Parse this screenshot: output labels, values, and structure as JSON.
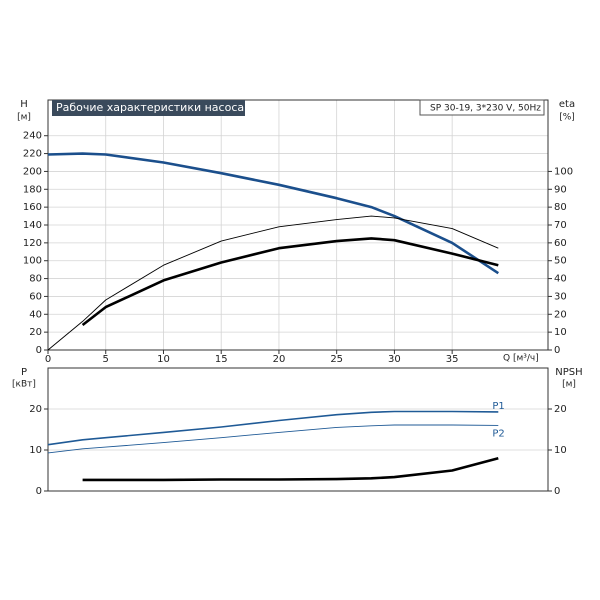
{
  "chart_data": [
    {
      "type": "line",
      "title": "Рабочие характеристики насоса",
      "subtitle": "SP 30-19, 3*230 V, 50Hz",
      "y_label": "H",
      "y_unit": "[м]",
      "y2_label": "eta",
      "y2_unit": "[%]",
      "x_label": "Q [м³/ч]",
      "x": [
        0,
        3,
        5,
        10,
        15,
        20,
        25,
        28,
        30,
        35,
        39
      ],
      "xlim": [
        0,
        43.3
      ],
      "xticks": [
        0,
        5,
        10,
        15,
        20,
        25,
        30,
        35
      ],
      "ylim": [
        0,
        280
      ],
      "yticks": [
        0,
        20,
        40,
        60,
        80,
        100,
        120,
        140,
        160,
        180,
        200,
        220,
        240
      ],
      "y2lim": [
        0,
        140
      ],
      "y2ticks": [
        0,
        10,
        20,
        30,
        40,
        50,
        60,
        70,
        80,
        90,
        100
      ],
      "grid": true,
      "series": [
        {
          "color": "#1b4f8c",
          "line_style": "thick",
          "values": [
            219,
            220,
            219,
            210,
            198,
            185,
            170,
            160,
            150,
            120,
            86
          ]
        },
        {
          "color": "#000000",
          "line_style": "thin",
          "axis": "y2",
          "values": [
            0,
            16,
            28,
            47.5,
            61,
            69,
            73,
            75,
            74,
            68,
            57
          ]
        },
        {
          "color": "#000000",
          "line_style": "thick",
          "axis": "y2",
          "values": [
            null,
            14,
            24,
            39,
            49,
            57,
            61,
            62.5,
            61.5,
            54,
            47.5
          ]
        }
      ]
    },
    {
      "type": "line",
      "y_label": "P",
      "y_unit": "[кВт]",
      "y2_label": "NPSH",
      "y2_unit": "[м]",
      "x": [
        0,
        3,
        5,
        10,
        15,
        20,
        25,
        28,
        30,
        35,
        39
      ],
      "xlim": [
        0,
        43.3
      ],
      "ylim": [
        0,
        30
      ],
      "yticks": [
        0,
        10,
        20
      ],
      "y2lim": [
        0,
        30
      ],
      "y2ticks": [
        0,
        10,
        20
      ],
      "grid": true,
      "series": [
        {
          "name": "P1",
          "color": "#1f5a96",
          "line_style": "medium",
          "values": [
            11.3,
            12.5,
            13,
            14.3,
            15.6,
            17.2,
            18.6,
            19.2,
            19.4,
            19.4,
            19.3
          ]
        },
        {
          "name": "P2",
          "color": "#1f5a96",
          "line_style": "thin",
          "values": [
            9.3,
            10.3,
            10.7,
            11.8,
            13,
            14.3,
            15.5,
            15.9,
            16.1,
            16.1,
            16
          ]
        },
        {
          "color": "#000000",
          "line_style": "thick",
          "axis": "y2",
          "values": [
            null,
            2.7,
            2.7,
            2.7,
            2.8,
            2.8,
            2.9,
            3.1,
            3.4,
            5,
            8
          ]
        }
      ]
    }
  ]
}
